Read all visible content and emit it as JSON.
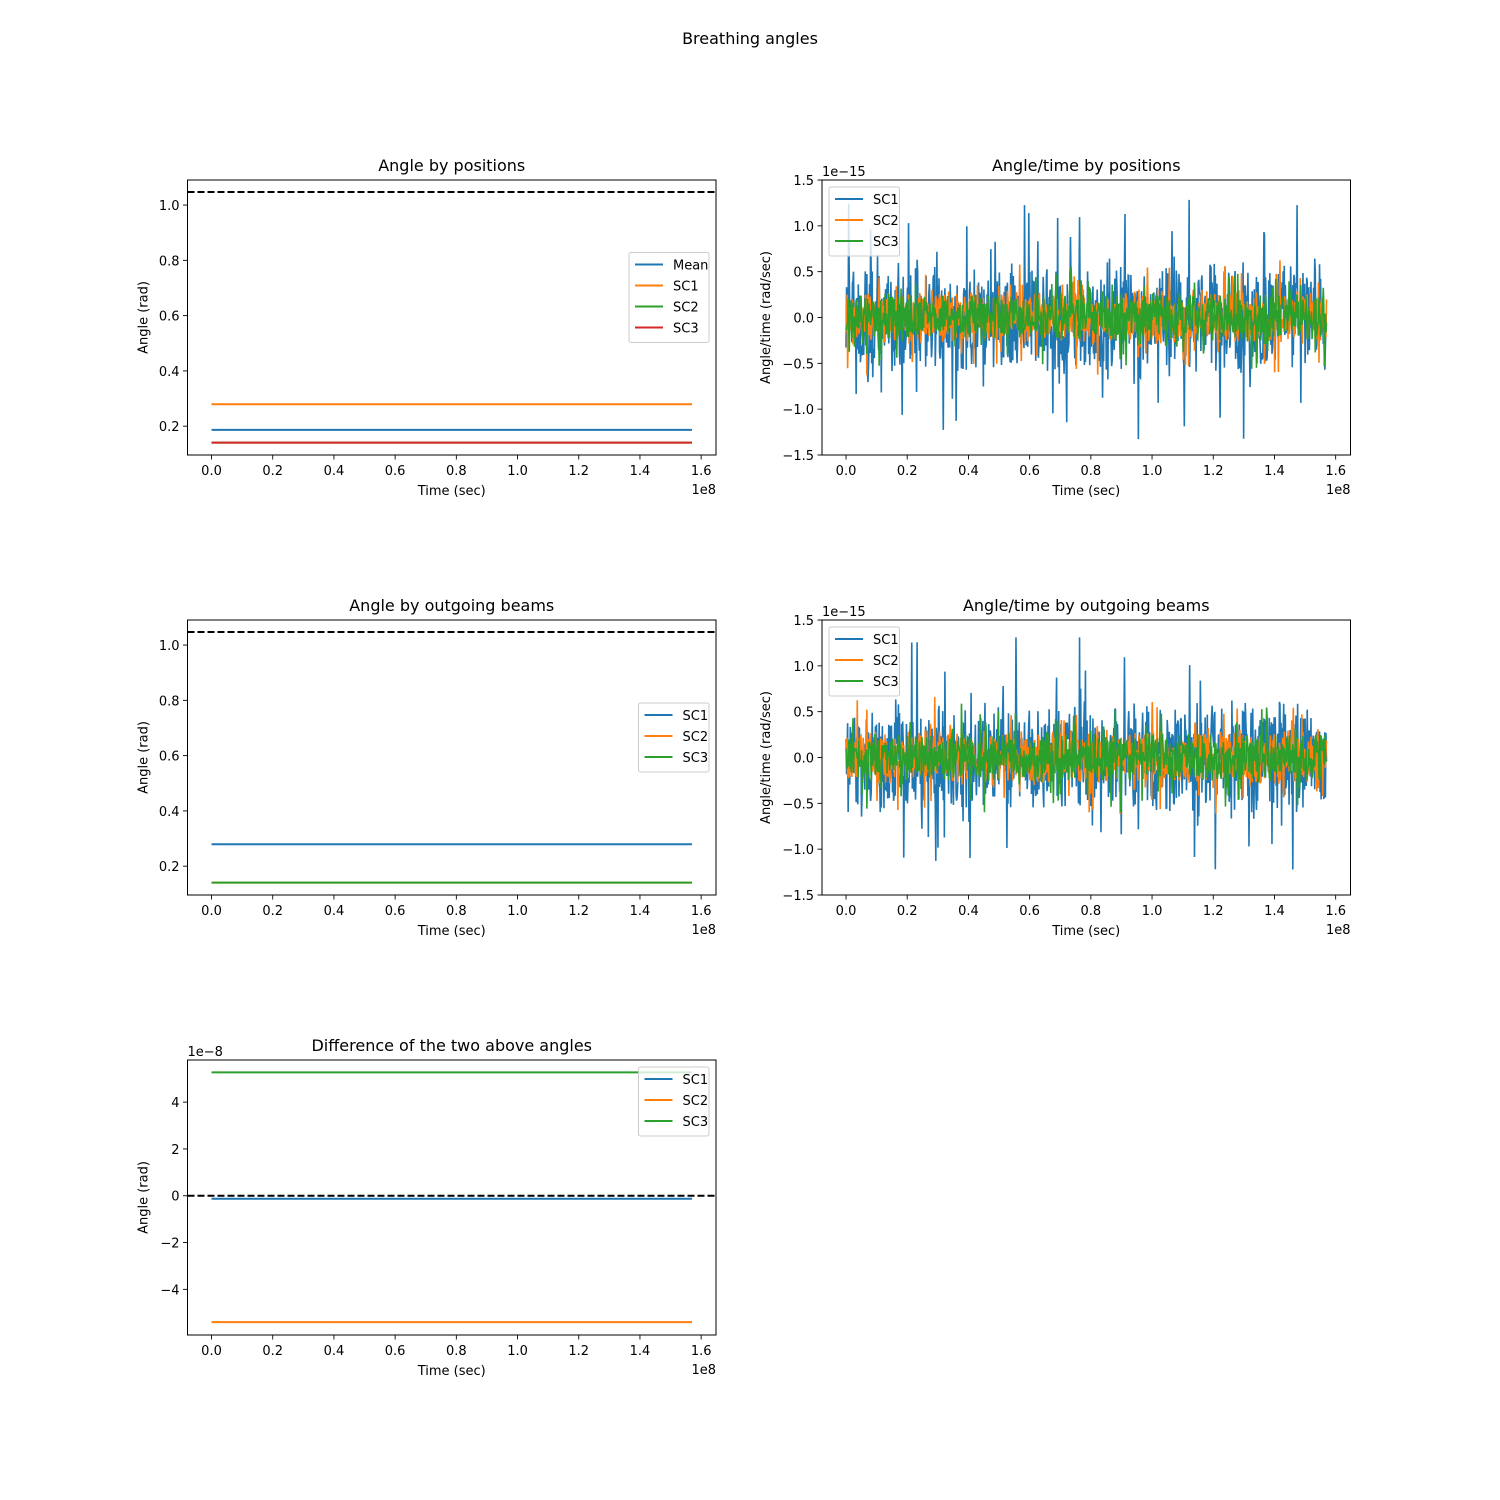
{
  "figure": {
    "suptitle": "Breathing angles",
    "colors": {
      "C0": "#1f77b4",
      "C1": "#ff7f0e",
      "C2": "#2ca02c",
      "C3": "#d62728",
      "ref_line": "#000000"
    }
  },
  "chart_data": [
    {
      "id": "angle-positions",
      "type": "line",
      "title": "Angle by positions",
      "xlabel": "Time (sec)",
      "ylabel": "Angle (rad)",
      "x_offset_label": "1e8",
      "y_offset_label": "",
      "xlim": [
        -0.0785,
        1.6485
      ],
      "ylim": [
        0.0957,
        1.0907
      ],
      "xticks": [
        "0.0",
        "0.2",
        "0.4",
        "0.6",
        "0.8",
        "1.0",
        "1.2",
        "1.4",
        "1.6"
      ],
      "xtick_values": [
        0.0,
        0.2,
        0.4,
        0.6,
        0.8,
        1.0,
        1.2,
        1.4,
        1.6
      ],
      "yticks": [
        "0.2",
        "0.4",
        "0.6",
        "0.8",
        "1.0"
      ],
      "ytick_values": [
        0.2,
        0.4,
        0.6,
        0.8,
        1.0
      ],
      "x": [
        0.0,
        1.57
      ],
      "series": [
        {
          "name": "Mean",
          "color": "C0",
          "values": [
            0.1868,
            0.1868
          ]
        },
        {
          "name": "SC1",
          "color": "C1",
          "values": [
            0.2795,
            0.2795
          ]
        },
        {
          "name": "SC2",
          "color": "C2",
          "values": [
            0.1404,
            0.1404
          ]
        },
        {
          "name": "SC3",
          "color": "C3",
          "values": [
            0.1404,
            0.1404
          ]
        }
      ],
      "reference_line": {
        "y": 1.0472,
        "style": "dashed"
      },
      "legend_position": "center-right",
      "grid": false
    },
    {
      "id": "angle-rate-positions",
      "type": "line",
      "title": "Angle/time by positions",
      "xlabel": "Time (sec)",
      "ylabel": "Angle/time (rad/sec)",
      "x_offset_label": "1e8",
      "y_offset_label": "1e−15",
      "xlim": [
        -0.0785,
        1.6485
      ],
      "ylim": [
        -1.5,
        1.5
      ],
      "xticks": [
        "0.0",
        "0.2",
        "0.4",
        "0.6",
        "0.8",
        "1.0",
        "1.2",
        "1.4",
        "1.6"
      ],
      "xtick_values": [
        0.0,
        0.2,
        0.4,
        0.6,
        0.8,
        1.0,
        1.2,
        1.4,
        1.6
      ],
      "yticks": [
        "−1.5",
        "−1.0",
        "−0.5",
        "0.0",
        "0.5",
        "1.0",
        "1.5"
      ],
      "ytick_values": [
        -1.5,
        -1.0,
        -0.5,
        0.0,
        0.5,
        1.0,
        1.5
      ],
      "x_range": [
        0.0,
        1.57
      ],
      "series": [
        {
          "name": "SC1",
          "color": "C0",
          "amplitude": 1.37,
          "pattern": "noise"
        },
        {
          "name": "SC2",
          "color": "C1",
          "amplitude": 0.68,
          "pattern": "noise"
        },
        {
          "name": "SC3",
          "color": "C2",
          "amplitude": 0.6,
          "pattern": "noise"
        }
      ],
      "legend_position": "upper-left",
      "grid": false
    },
    {
      "id": "angle-beams",
      "type": "line",
      "title": "Angle by outgoing beams",
      "xlabel": "Time (sec)",
      "ylabel": "Angle (rad)",
      "x_offset_label": "1e8",
      "y_offset_label": "",
      "xlim": [
        -0.0785,
        1.6485
      ],
      "ylim": [
        0.0957,
        1.0907
      ],
      "xticks": [
        "0.0",
        "0.2",
        "0.4",
        "0.6",
        "0.8",
        "1.0",
        "1.2",
        "1.4",
        "1.6"
      ],
      "xtick_values": [
        0.0,
        0.2,
        0.4,
        0.6,
        0.8,
        1.0,
        1.2,
        1.4,
        1.6
      ],
      "yticks": [
        "0.2",
        "0.4",
        "0.6",
        "0.8",
        "1.0"
      ],
      "ytick_values": [
        0.2,
        0.4,
        0.6,
        0.8,
        1.0
      ],
      "x": [
        0.0,
        1.57
      ],
      "series": [
        {
          "name": "SC1",
          "color": "C0",
          "values": [
            0.2795,
            0.2795
          ]
        },
        {
          "name": "SC2",
          "color": "C1",
          "values": [
            0.1404,
            0.1404
          ]
        },
        {
          "name": "SC3",
          "color": "C2",
          "values": [
            0.1404,
            0.1404
          ]
        }
      ],
      "reference_line": {
        "y": 1.0472,
        "style": "dashed"
      },
      "legend_position": "center-right",
      "grid": false
    },
    {
      "id": "angle-rate-beams",
      "type": "line",
      "title": "Angle/time by outgoing beams",
      "xlabel": "Time (sec)",
      "ylabel": "Angle/time (rad/sec)",
      "x_offset_label": "1e8",
      "y_offset_label": "1e−15",
      "xlim": [
        -0.0785,
        1.6485
      ],
      "ylim": [
        -1.5,
        1.5
      ],
      "xticks": [
        "0.0",
        "0.2",
        "0.4",
        "0.6",
        "0.8",
        "1.0",
        "1.2",
        "1.4",
        "1.6"
      ],
      "xtick_values": [
        0.0,
        0.2,
        0.4,
        0.6,
        0.8,
        1.0,
        1.2,
        1.4,
        1.6
      ],
      "yticks": [
        "−1.5",
        "−1.0",
        "−0.5",
        "0.0",
        "0.5",
        "1.0",
        "1.5"
      ],
      "ytick_values": [
        -1.5,
        -1.0,
        -0.5,
        0.0,
        0.5,
        1.0,
        1.5
      ],
      "x_range": [
        0.0,
        1.57
      ],
      "series": [
        {
          "name": "SC1",
          "color": "C0",
          "amplitude": 1.37,
          "pattern": "noise"
        },
        {
          "name": "SC2",
          "color": "C1",
          "amplitude": 0.68,
          "pattern": "noise"
        },
        {
          "name": "SC3",
          "color": "C2",
          "amplitude": 0.6,
          "pattern": "noise"
        }
      ],
      "legend_position": "upper-left",
      "grid": false
    },
    {
      "id": "angle-difference",
      "type": "line",
      "title": "Difference of the two above angles",
      "xlabel": "Time (sec)",
      "ylabel": "Angle (rad)",
      "x_offset_label": "1e8",
      "y_offset_label": "1e−8",
      "xlim": [
        -0.0785,
        1.6485
      ],
      "ylim": [
        -5.95,
        5.8
      ],
      "xticks": [
        "0.0",
        "0.2",
        "0.4",
        "0.6",
        "0.8",
        "1.0",
        "1.2",
        "1.4",
        "1.6"
      ],
      "xtick_values": [
        0.0,
        0.2,
        0.4,
        0.6,
        0.8,
        1.0,
        1.2,
        1.4,
        1.6
      ],
      "yticks": [
        "−4",
        "−2",
        "0",
        "2",
        "4"
      ],
      "ytick_values": [
        -4,
        -2,
        0,
        2,
        4
      ],
      "x": [
        0.0,
        1.57
      ],
      "series": [
        {
          "name": "SC1",
          "color": "C0",
          "values": [
            -0.13,
            -0.13
          ]
        },
        {
          "name": "SC2",
          "color": "C1",
          "values": [
            -5.4,
            -5.4
          ]
        },
        {
          "name": "SC3",
          "color": "C2",
          "values": [
            5.27,
            5.27
          ]
        }
      ],
      "reference_line": {
        "y": 0,
        "style": "dashed"
      },
      "legend_position": "upper-right",
      "grid": false
    }
  ]
}
